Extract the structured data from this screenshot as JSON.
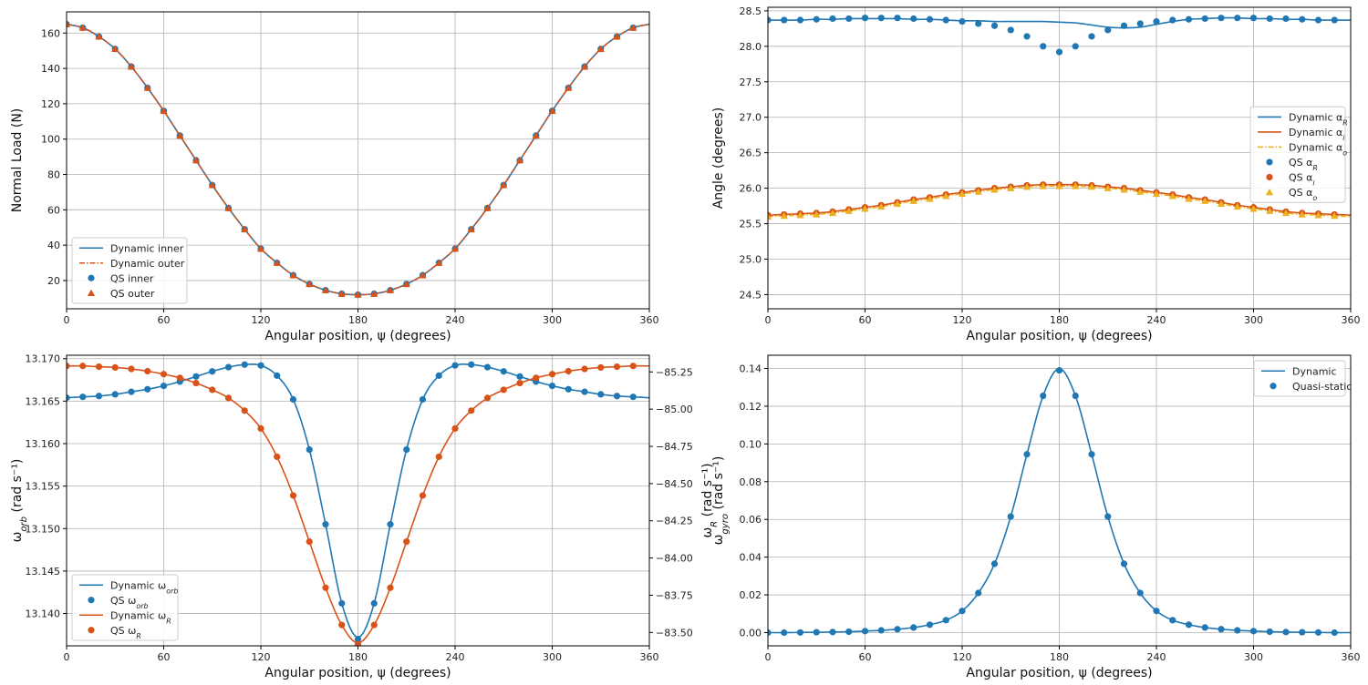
{
  "colors": {
    "blue": "#1f77b4",
    "orange": "#d95319",
    "yellow": "#edb120"
  },
  "chart_data": [
    {
      "id": "p1",
      "type": "line",
      "xlabel": "Angular position, ψ (degrees)",
      "ylabel": "Normal Load (N)",
      "xlim": [
        0,
        360
      ],
      "ylim": [
        4,
        172
      ],
      "xticks": [
        0,
        60,
        120,
        180,
        240,
        300,
        360
      ],
      "xtick_labels": [
        "0",
        "60",
        "120",
        "180",
        "240",
        "300",
        "360"
      ],
      "yticks": [
        20,
        40,
        60,
        80,
        100,
        120,
        140,
        160
      ],
      "ytick_labels": [
        "20",
        "40",
        "60",
        "80",
        "100",
        "120",
        "140",
        "160"
      ],
      "grid": true,
      "legend_loc": "lower-left",
      "x": [
        0,
        10,
        20,
        30,
        40,
        50,
        60,
        70,
        80,
        90,
        100,
        110,
        120,
        130,
        140,
        150,
        160,
        170,
        180,
        190,
        200,
        210,
        220,
        230,
        240,
        250,
        260,
        270,
        280,
        290,
        300,
        310,
        320,
        330,
        340,
        350,
        360
      ],
      "series": [
        {
          "name": "Dynamic inner",
          "kind": "line",
          "style": "solid",
          "color": "#1f77b4",
          "values": [
            165,
            163,
            158,
            151,
            141,
            129,
            116,
            102,
            88,
            74,
            61,
            49,
            38,
            30,
            23,
            18,
            14.5,
            12.5,
            12,
            12.5,
            14.5,
            18,
            23,
            30,
            38,
            49,
            61,
            74,
            88,
            102,
            116,
            129,
            141,
            151,
            158,
            163,
            165
          ]
        },
        {
          "name": "Dynamic outer",
          "kind": "line",
          "style": "dashdot",
          "color": "#d95319",
          "values": [
            165,
            163,
            158,
            151,
            141,
            129,
            116,
            102,
            88,
            74,
            61,
            49,
            38,
            30,
            23,
            18,
            14.5,
            12.5,
            12,
            12.5,
            14.5,
            18,
            23,
            30,
            38,
            49,
            61,
            74,
            88,
            102,
            116,
            129,
            141,
            151,
            158,
            163,
            165
          ]
        },
        {
          "name": "QS inner",
          "kind": "marker",
          "marker": "circle",
          "color": "#1f77b4",
          "values": [
            165,
            163,
            158,
            151,
            141,
            129,
            116,
            102,
            88,
            74,
            61,
            49,
            38,
            30,
            23,
            18,
            14.5,
            12.5,
            12,
            12.5,
            14.5,
            18,
            23,
            30,
            38,
            49,
            61,
            74,
            88,
            102,
            116,
            129,
            141,
            151,
            158,
            163,
            165
          ]
        },
        {
          "name": "QS outer",
          "kind": "marker",
          "marker": "triangle",
          "color": "#d95319",
          "values": [
            165,
            163,
            158,
            151,
            141,
            129,
            116,
            102,
            88,
            74,
            61,
            49,
            38,
            30,
            23,
            18,
            14.5,
            12.5,
            12,
            12.5,
            14.5,
            18,
            23,
            30,
            38,
            49,
            61,
            74,
            88,
            102,
            116,
            129,
            141,
            151,
            158,
            163,
            165
          ]
        }
      ]
    },
    {
      "id": "p2",
      "type": "line",
      "xlabel": "Angular position, ψ (degrees)",
      "ylabel": "Angle (degrees)",
      "xlim": [
        0,
        360
      ],
      "ylim": [
        24.3,
        28.55
      ],
      "xticks": [
        0,
        60,
        120,
        180,
        240,
        300,
        360
      ],
      "xtick_labels": [
        "0",
        "60",
        "120",
        "180",
        "240",
        "300",
        "360"
      ],
      "yticks": [
        24.5,
        25.0,
        25.5,
        26.0,
        26.5,
        27.0,
        27.5,
        28.0,
        28.5
      ],
      "ytick_labels": [
        "24.5",
        "25.0",
        "25.5",
        "26.0",
        "26.5",
        "27.0",
        "27.5",
        "28.0",
        "28.5"
      ],
      "grid": true,
      "legend_loc": "center-right",
      "x": [
        0,
        10,
        20,
        30,
        40,
        50,
        60,
        70,
        80,
        90,
        100,
        110,
        120,
        130,
        140,
        150,
        160,
        170,
        180,
        190,
        200,
        210,
        220,
        230,
        240,
        250,
        260,
        270,
        280,
        290,
        300,
        310,
        320,
        330,
        340,
        350,
        360
      ],
      "series": [
        {
          "name": "Dynamic α_R",
          "kind": "line",
          "style": "solid",
          "color": "#1f77b4",
          "values": [
            28.37,
            28.37,
            28.37,
            28.38,
            28.38,
            28.39,
            28.39,
            28.39,
            28.39,
            28.38,
            28.38,
            28.37,
            28.36,
            28.36,
            28.35,
            28.35,
            28.35,
            28.35,
            28.34,
            28.33,
            28.3,
            28.27,
            28.26,
            28.27,
            28.31,
            28.35,
            28.38,
            28.39,
            28.4,
            28.4,
            28.39,
            28.39,
            28.38,
            28.38,
            28.37,
            28.37,
            28.37
          ]
        },
        {
          "name": "Dynamic α_i",
          "kind": "line",
          "style": "solid",
          "color": "#d95319",
          "values": [
            25.62,
            25.63,
            25.64,
            25.65,
            25.67,
            25.7,
            25.73,
            25.76,
            25.8,
            25.84,
            25.87,
            25.91,
            25.94,
            25.97,
            26.0,
            26.02,
            26.04,
            26.05,
            26.05,
            26.05,
            26.04,
            26.02,
            26.0,
            25.97,
            25.94,
            25.91,
            25.87,
            25.84,
            25.8,
            25.76,
            25.73,
            25.7,
            25.67,
            25.65,
            25.64,
            25.63,
            25.62
          ]
        },
        {
          "name": "Dynamic α_o",
          "kind": "line",
          "style": "dashdot",
          "color": "#edb120",
          "values": [
            25.6,
            25.61,
            25.62,
            25.63,
            25.65,
            25.68,
            25.71,
            25.74,
            25.78,
            25.82,
            25.85,
            25.89,
            25.92,
            25.95,
            25.98,
            26.0,
            26.02,
            26.03,
            26.03,
            26.03,
            26.02,
            26.0,
            25.98,
            25.95,
            25.92,
            25.89,
            25.85,
            25.82,
            25.78,
            25.74,
            25.71,
            25.68,
            25.65,
            25.63,
            25.62,
            25.61,
            25.6
          ]
        },
        {
          "name": "QS α_R",
          "kind": "marker",
          "marker": "circle",
          "color": "#1f77b4",
          "values": [
            28.37,
            28.37,
            28.37,
            28.38,
            28.39,
            28.39,
            28.4,
            28.4,
            28.4,
            28.39,
            28.38,
            28.37,
            28.35,
            28.32,
            28.29,
            28.23,
            28.14,
            28.0,
            27.92,
            28.0,
            28.14,
            28.23,
            28.29,
            28.32,
            28.35,
            28.37,
            28.38,
            28.39,
            28.4,
            28.4,
            28.4,
            28.39,
            28.39,
            28.38,
            28.37,
            28.37,
            28.37
          ]
        },
        {
          "name": "QS α_i",
          "kind": "marker",
          "marker": "circle",
          "color": "#d95319",
          "values": [
            25.62,
            25.63,
            25.64,
            25.65,
            25.67,
            25.7,
            25.73,
            25.76,
            25.8,
            25.84,
            25.87,
            25.91,
            25.94,
            25.97,
            26.0,
            26.02,
            26.04,
            26.05,
            26.05,
            26.05,
            26.04,
            26.02,
            26.0,
            25.97,
            25.94,
            25.91,
            25.87,
            25.84,
            25.8,
            25.76,
            25.73,
            25.7,
            25.67,
            25.65,
            25.64,
            25.63,
            25.62
          ]
        },
        {
          "name": "QS α_o",
          "kind": "marker",
          "marker": "triangle",
          "color": "#edb120",
          "values": [
            25.6,
            25.61,
            25.62,
            25.63,
            25.65,
            25.68,
            25.71,
            25.74,
            25.78,
            25.82,
            25.85,
            25.89,
            25.92,
            25.95,
            25.98,
            26.0,
            26.02,
            26.03,
            26.03,
            26.03,
            26.02,
            26.0,
            25.98,
            25.95,
            25.92,
            25.89,
            25.85,
            25.82,
            25.78,
            25.74,
            25.71,
            25.68,
            25.65,
            25.63,
            25.62,
            25.61,
            25.6
          ]
        }
      ]
    },
    {
      "id": "p3",
      "type": "line",
      "xlabel": "Angular position, ψ (degrees)",
      "ylabel": "ω_orb (rad s⁻¹)",
      "ylabel_right": "ω_R (rad s⁻¹)",
      "xlim": [
        0,
        360
      ],
      "ylim": [
        13.1362,
        13.1704
      ],
      "y2lim": [
        -85.362,
        -83.41
      ],
      "y2_inverted": true,
      "xticks": [
        0,
        60,
        120,
        180,
        240,
        300,
        360
      ],
      "xtick_labels": [
        "0",
        "60",
        "120",
        "180",
        "240",
        "300",
        "360"
      ],
      "yticks": [
        13.14,
        13.145,
        13.15,
        13.155,
        13.16,
        13.165,
        13.17
      ],
      "ytick_labels": [
        "13.140",
        "13.145",
        "13.150",
        "13.155",
        "13.160",
        "13.165",
        "13.170"
      ],
      "y2ticks": [
        -85.25,
        -85.0,
        -84.75,
        -84.5,
        -84.25,
        -84.0,
        -83.75,
        -83.5
      ],
      "y2tick_labels": [
        "−85.25",
        "−85.00",
        "−84.75",
        "−84.50",
        "−84.25",
        "−84.00",
        "−83.75",
        "−83.50"
      ],
      "grid": true,
      "legend_loc": "lower-left",
      "x": [
        0,
        10,
        20,
        30,
        40,
        50,
        60,
        70,
        80,
        90,
        100,
        110,
        120,
        130,
        140,
        150,
        160,
        170,
        180,
        190,
        200,
        210,
        220,
        230,
        240,
        250,
        260,
        270,
        280,
        290,
        300,
        310,
        320,
        330,
        340,
        350,
        360
      ],
      "series": [
        {
          "name": "Dynamic ω_orb",
          "kind": "line",
          "style": "solid",
          "color": "#1f77b4",
          "axis": "left",
          "values": [
            13.1654,
            13.1655,
            13.1656,
            13.1658,
            13.1661,
            13.1664,
            13.1668,
            13.1673,
            13.1679,
            13.1685,
            13.169,
            13.1693,
            13.1692,
            13.168,
            13.1652,
            13.1593,
            13.1505,
            13.1412,
            13.1372,
            13.1412,
            13.1505,
            13.1593,
            13.1652,
            13.168,
            13.1692,
            13.1693,
            13.169,
            13.1685,
            13.1679,
            13.1673,
            13.1668,
            13.1664,
            13.1661,
            13.1658,
            13.1656,
            13.1655,
            13.1654
          ]
        },
        {
          "name": "QS ω_orb",
          "kind": "marker",
          "marker": "circle",
          "color": "#1f77b4",
          "axis": "left",
          "values": [
            13.1654,
            13.1655,
            13.1656,
            13.1658,
            13.1661,
            13.1664,
            13.1668,
            13.1673,
            13.1679,
            13.1685,
            13.169,
            13.1693,
            13.1692,
            13.168,
            13.1652,
            13.1593,
            13.1505,
            13.1412,
            13.137,
            13.1412,
            13.1505,
            13.1593,
            13.1652,
            13.168,
            13.1692,
            13.1693,
            13.169,
            13.1685,
            13.1679,
            13.1673,
            13.1668,
            13.1664,
            13.1661,
            13.1658,
            13.1656,
            13.1655,
            13.1654
          ]
        },
        {
          "name": "Dynamic ω_R",
          "kind": "line",
          "style": "solid",
          "color": "#d95319",
          "axis": "right",
          "values": [
            -85.29,
            -85.29,
            -85.285,
            -85.28,
            -85.27,
            -85.255,
            -85.235,
            -85.21,
            -85.175,
            -85.13,
            -85.075,
            -84.99,
            -84.87,
            -84.68,
            -84.42,
            -84.11,
            -83.8,
            -83.55,
            -83.43,
            -83.55,
            -83.8,
            -84.11,
            -84.42,
            -84.68,
            -84.87,
            -84.99,
            -85.075,
            -85.13,
            -85.175,
            -85.21,
            -85.235,
            -85.255,
            -85.27,
            -85.28,
            -85.285,
            -85.29,
            -85.29
          ]
        },
        {
          "name": "QS ω_R",
          "kind": "marker",
          "marker": "circle",
          "color": "#d95319",
          "axis": "right",
          "values": [
            -85.29,
            -85.29,
            -85.285,
            -85.28,
            -85.27,
            -85.255,
            -85.235,
            -85.21,
            -85.175,
            -85.13,
            -85.075,
            -84.99,
            -84.87,
            -84.68,
            -84.42,
            -84.11,
            -83.8,
            -83.55,
            -83.42,
            -83.55,
            -83.8,
            -84.11,
            -84.42,
            -84.68,
            -84.87,
            -84.99,
            -85.075,
            -85.13,
            -85.175,
            -85.21,
            -85.235,
            -85.255,
            -85.27,
            -85.28,
            -85.285,
            -85.29,
            -85.29
          ]
        }
      ]
    },
    {
      "id": "p4",
      "type": "line",
      "xlabel": "Angular position, ψ (degrees)",
      "ylabel": "ω_gyro (rad s⁻¹)",
      "xlim": [
        0,
        360
      ],
      "ylim": [
        -0.007,
        0.147
      ],
      "xticks": [
        0,
        60,
        120,
        180,
        240,
        300,
        360
      ],
      "xtick_labels": [
        "0",
        "60",
        "120",
        "180",
        "240",
        "300",
        "360"
      ],
      "yticks": [
        0.0,
        0.02,
        0.04,
        0.06,
        0.08,
        0.1,
        0.12,
        0.14
      ],
      "ytick_labels": [
        "0.00",
        "0.02",
        "0.04",
        "0.06",
        "0.08",
        "0.10",
        "0.12",
        "0.14"
      ],
      "grid": true,
      "legend_loc": "top-right",
      "x": [
        0,
        10,
        20,
        30,
        40,
        50,
        60,
        70,
        80,
        90,
        100,
        110,
        120,
        130,
        140,
        150,
        160,
        170,
        180,
        190,
        200,
        210,
        220,
        230,
        240,
        250,
        260,
        270,
        280,
        290,
        300,
        310,
        320,
        330,
        340,
        350,
        360
      ],
      "series": [
        {
          "name": "Dynamic",
          "kind": "line",
          "style": "solid",
          "color": "#1f77b4",
          "values": [
            0.0,
            0.0,
            0.0001,
            0.0002,
            0.0003,
            0.0005,
            0.0008,
            0.0012,
            0.0018,
            0.0027,
            0.0042,
            0.0066,
            0.0115,
            0.021,
            0.0365,
            0.0615,
            0.0945,
            0.1255,
            0.14,
            0.1255,
            0.0945,
            0.0615,
            0.0365,
            0.021,
            0.0115,
            0.0066,
            0.0042,
            0.0027,
            0.0018,
            0.0012,
            0.0008,
            0.0005,
            0.0003,
            0.0002,
            0.0001,
            0.0,
            0.0
          ]
        },
        {
          "name": "Quasi-static",
          "kind": "marker",
          "marker": "circle",
          "color": "#1f77b4",
          "values": [
            0.0,
            0.0,
            0.0001,
            0.0002,
            0.0003,
            0.0005,
            0.0008,
            0.0012,
            0.0018,
            0.0027,
            0.0042,
            0.0066,
            0.0115,
            0.021,
            0.0365,
            0.0615,
            0.0945,
            0.1255,
            0.139,
            0.1255,
            0.0945,
            0.0615,
            0.0365,
            0.021,
            0.0115,
            0.0066,
            0.0042,
            0.0027,
            0.0018,
            0.0012,
            0.0008,
            0.0005,
            0.0003,
            0.0002,
            0.0001,
            0.0,
            0.0
          ]
        }
      ]
    }
  ]
}
